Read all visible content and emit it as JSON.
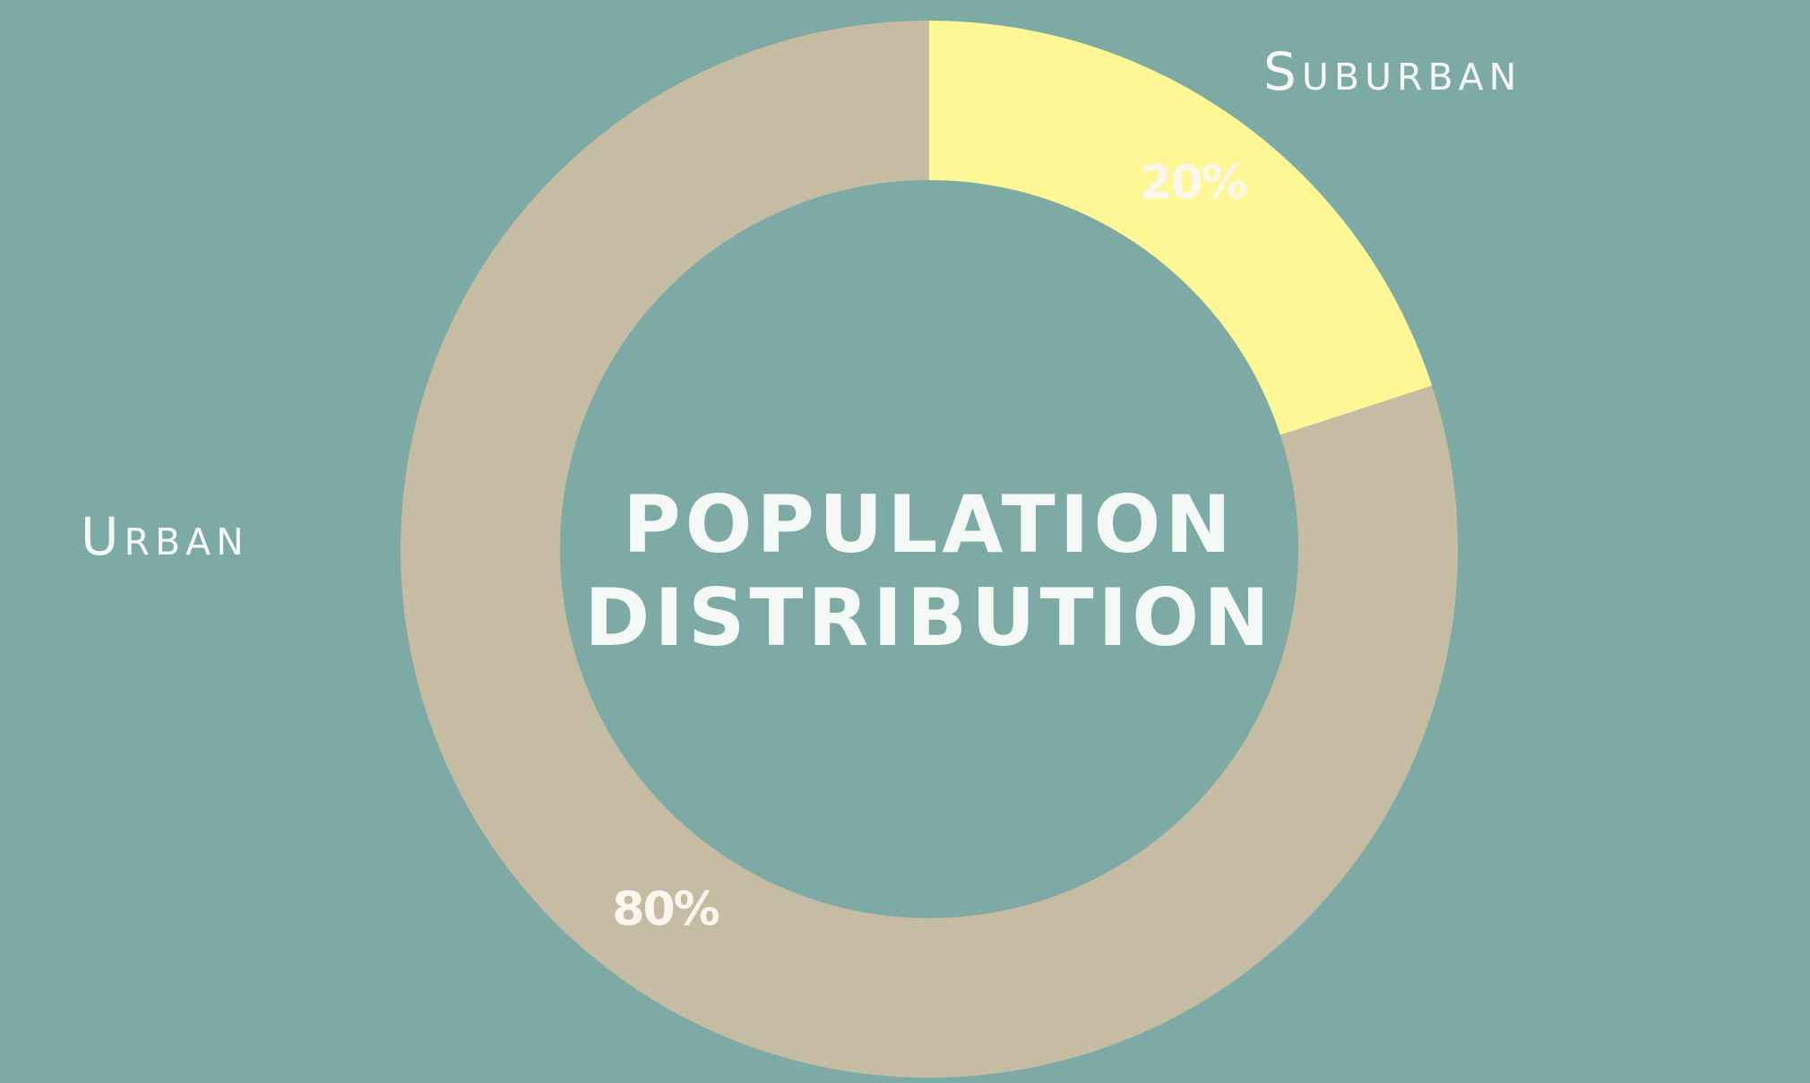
{
  "chart_data": {
    "type": "donut",
    "title": "POPULATION DISTRIBUTION",
    "categories": [
      "Suburban",
      "Urban"
    ],
    "values": [
      20,
      80
    ],
    "value_labels": [
      "20%",
      "80%"
    ],
    "colors": [
      "#fdf895",
      "#c5bca3"
    ]
  }
}
